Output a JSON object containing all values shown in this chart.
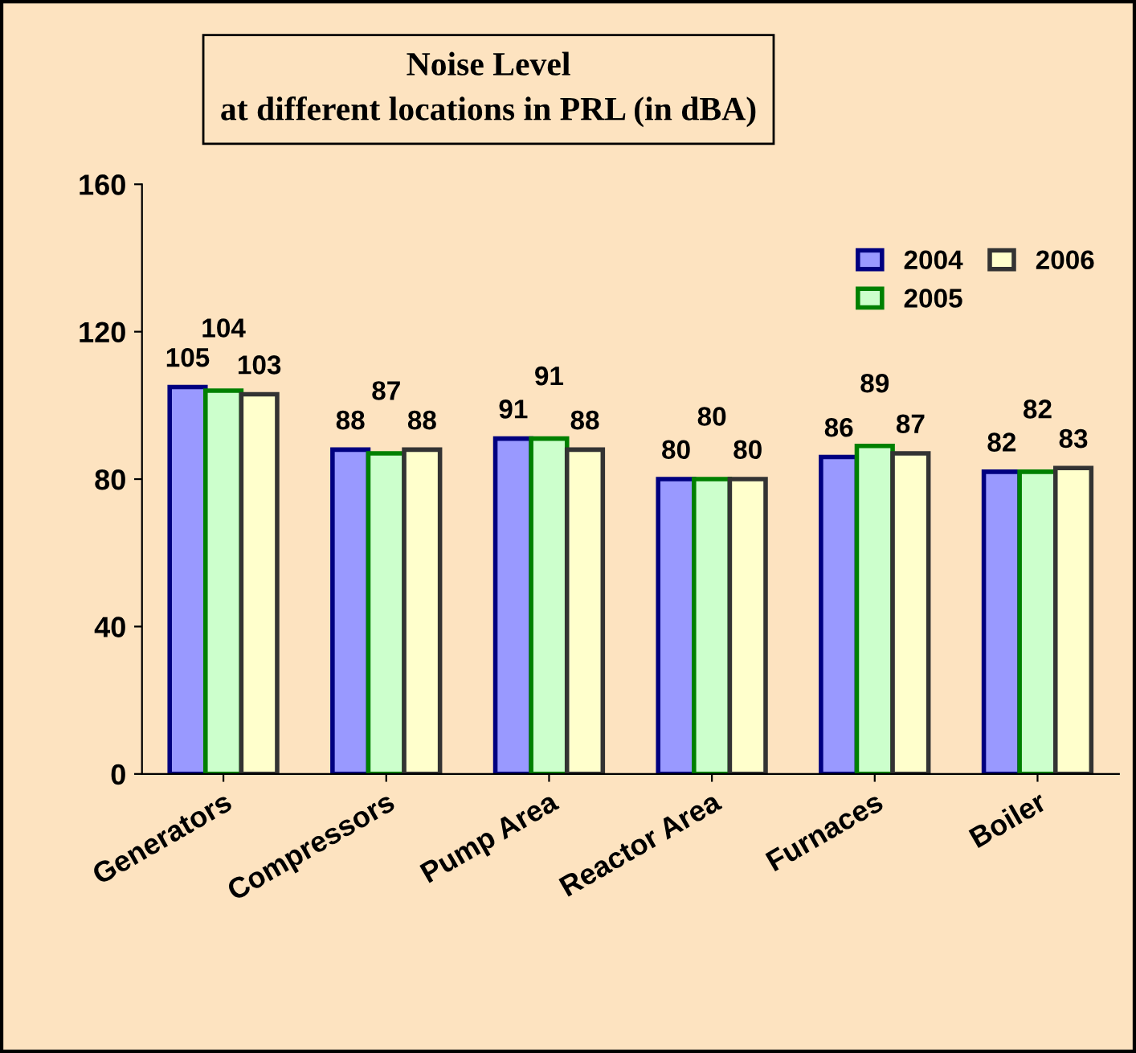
{
  "chart_data": {
    "type": "bar",
    "title": "Noise Level\nat different locations in PRL (in dBA)",
    "categories": [
      "Generators",
      "Compressors",
      "Pump Area",
      "Reactor Area",
      "Furnaces",
      "Boiler"
    ],
    "series": [
      {
        "name": "2004",
        "color": "#9999ff",
        "values": [
          105,
          88,
          91,
          80,
          86,
          82
        ]
      },
      {
        "name": "2005",
        "color": "#ccffcc",
        "values": [
          104,
          87,
          91,
          80,
          89,
          82
        ]
      },
      {
        "name": "2006",
        "color": "#ffffcc",
        "values": [
          103,
          88,
          88,
          80,
          87,
          83
        ]
      }
    ],
    "ylim": [
      0,
      160
    ],
    "yticks": [
      0,
      40,
      80,
      120,
      160
    ],
    "grid": false,
    "legend": "top right",
    "data_labels": true
  }
}
